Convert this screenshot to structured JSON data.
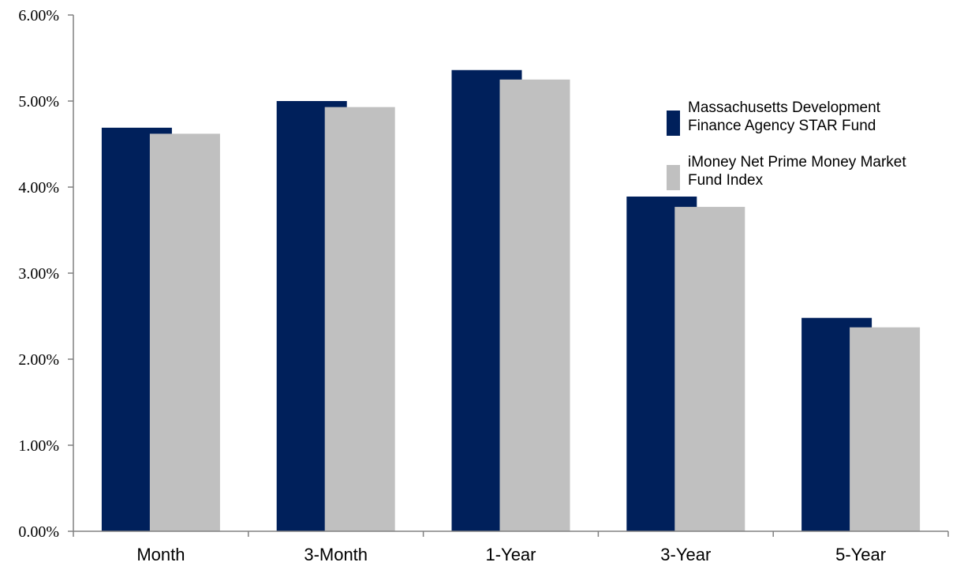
{
  "chart_data": {
    "type": "bar",
    "categories": [
      "Month",
      "3-Month",
      "1-Year",
      "3-Year",
      "5-Year"
    ],
    "series": [
      {
        "name": "Massachusetts Development Finance Agency STAR Fund",
        "legend_lines": [
          "Massachusetts Development",
          "Finance Agency STAR Fund"
        ],
        "color": "#00205b",
        "values": [
          4.69,
          5.0,
          5.36,
          3.89,
          2.48
        ]
      },
      {
        "name": "iMoney Net Prime Money Market Fund Index",
        "legend_lines": [
          "iMoney Net Prime Money Market",
          "Fund Index"
        ],
        "color": "#c0c0c0",
        "values": [
          4.62,
          4.93,
          5.25,
          3.77,
          2.37
        ]
      }
    ],
    "ylim": [
      0,
      6
    ],
    "yticks": [
      {
        "value": 0,
        "label": "0.00%"
      },
      {
        "value": 1,
        "label": "1.00%"
      },
      {
        "value": 2,
        "label": "2.00%"
      },
      {
        "value": 3,
        "label": "3.00%"
      },
      {
        "value": 4,
        "label": "4.00%"
      },
      {
        "value": 5,
        "label": "5.00%"
      },
      {
        "value": 6,
        "label": "6.00%"
      }
    ],
    "title": "",
    "xlabel": "",
    "ylabel": "",
    "grid": false,
    "legend_position": "right"
  }
}
